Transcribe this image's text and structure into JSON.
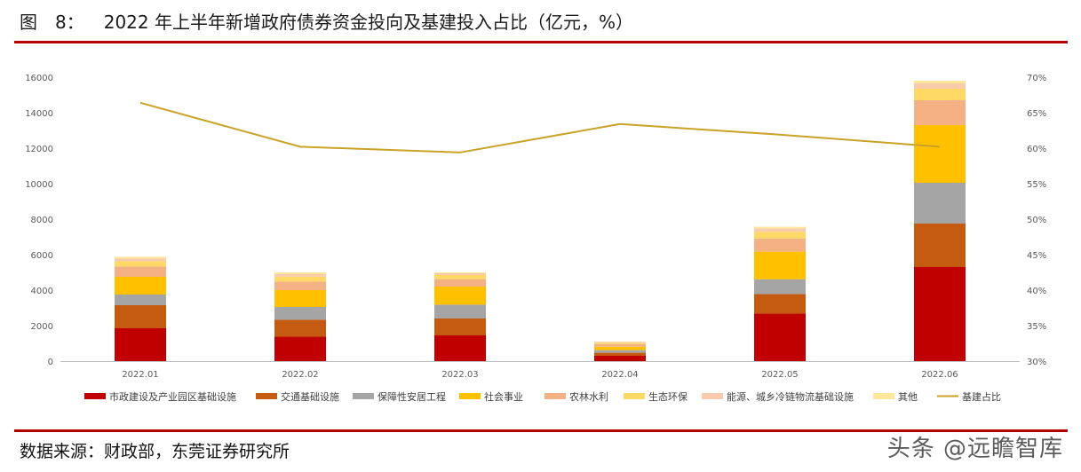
{
  "figure": {
    "label": "图　8：",
    "title": "2022 年上半年新增政府债券资金投向及基建投入占比（亿元，%）"
  },
  "source_note": "数据来源：财政部，东莞证券研究所",
  "watermark": "头条 @远瞻智库",
  "colors": {
    "rule": "#b40000",
    "line": "#c9a227"
  },
  "chart_data": {
    "type": "bar",
    "stacked": true,
    "categories": [
      "2022.01",
      "2022.02",
      "2022.03",
      "2022.04",
      "2022.05",
      "2022.06"
    ],
    "series": [
      {
        "name": "市政建设及产业园区基础设施",
        "color": "#c00000",
        "values": [
          1850,
          1380,
          1450,
          300,
          2680,
          5300
        ]
      },
      {
        "name": "交通基础设施",
        "color": "#c55a11",
        "values": [
          1300,
          950,
          950,
          170,
          1100,
          2450
        ]
      },
      {
        "name": "保障性安居工程",
        "color": "#a5a5a5",
        "values": [
          600,
          720,
          780,
          150,
          830,
          2300
        ]
      },
      {
        "name": "社会事业",
        "color": "#ffc000",
        "values": [
          1000,
          950,
          1020,
          190,
          1560,
          3250
        ]
      },
      {
        "name": "农林水利",
        "color": "#f4b183",
        "values": [
          580,
          480,
          420,
          150,
          740,
          1400
        ]
      },
      {
        "name": "生态环保",
        "color": "#ffd966",
        "values": [
          300,
          280,
          230,
          70,
          380,
          650
        ]
      },
      {
        "name": "能源、城乡冷链物流基础设施",
        "color": "#f8cbad",
        "values": [
          150,
          140,
          100,
          50,
          180,
          300
        ]
      },
      {
        "name": "其他",
        "color": "#ffe699",
        "values": [
          100,
          100,
          50,
          20,
          100,
          150
        ]
      }
    ],
    "line_series": {
      "name": "基建占比",
      "axis": "right",
      "color": "#c9a227",
      "values": [
        66.4,
        60.2,
        59.4,
        63.4,
        61.9,
        60.2
      ]
    },
    "y_left": {
      "min": 0,
      "max": 16000,
      "ticks": [
        "0",
        "2000",
        "4000",
        "6000",
        "8000",
        "10000",
        "12000",
        "14000",
        "16000"
      ]
    },
    "y_right": {
      "min": 30,
      "max": 70,
      "ticks": [
        "30%",
        "35%",
        "40%",
        "45%",
        "50%",
        "55%",
        "60%",
        "65%",
        "70%"
      ]
    },
    "grid": false,
    "legend_position": "bottom"
  }
}
